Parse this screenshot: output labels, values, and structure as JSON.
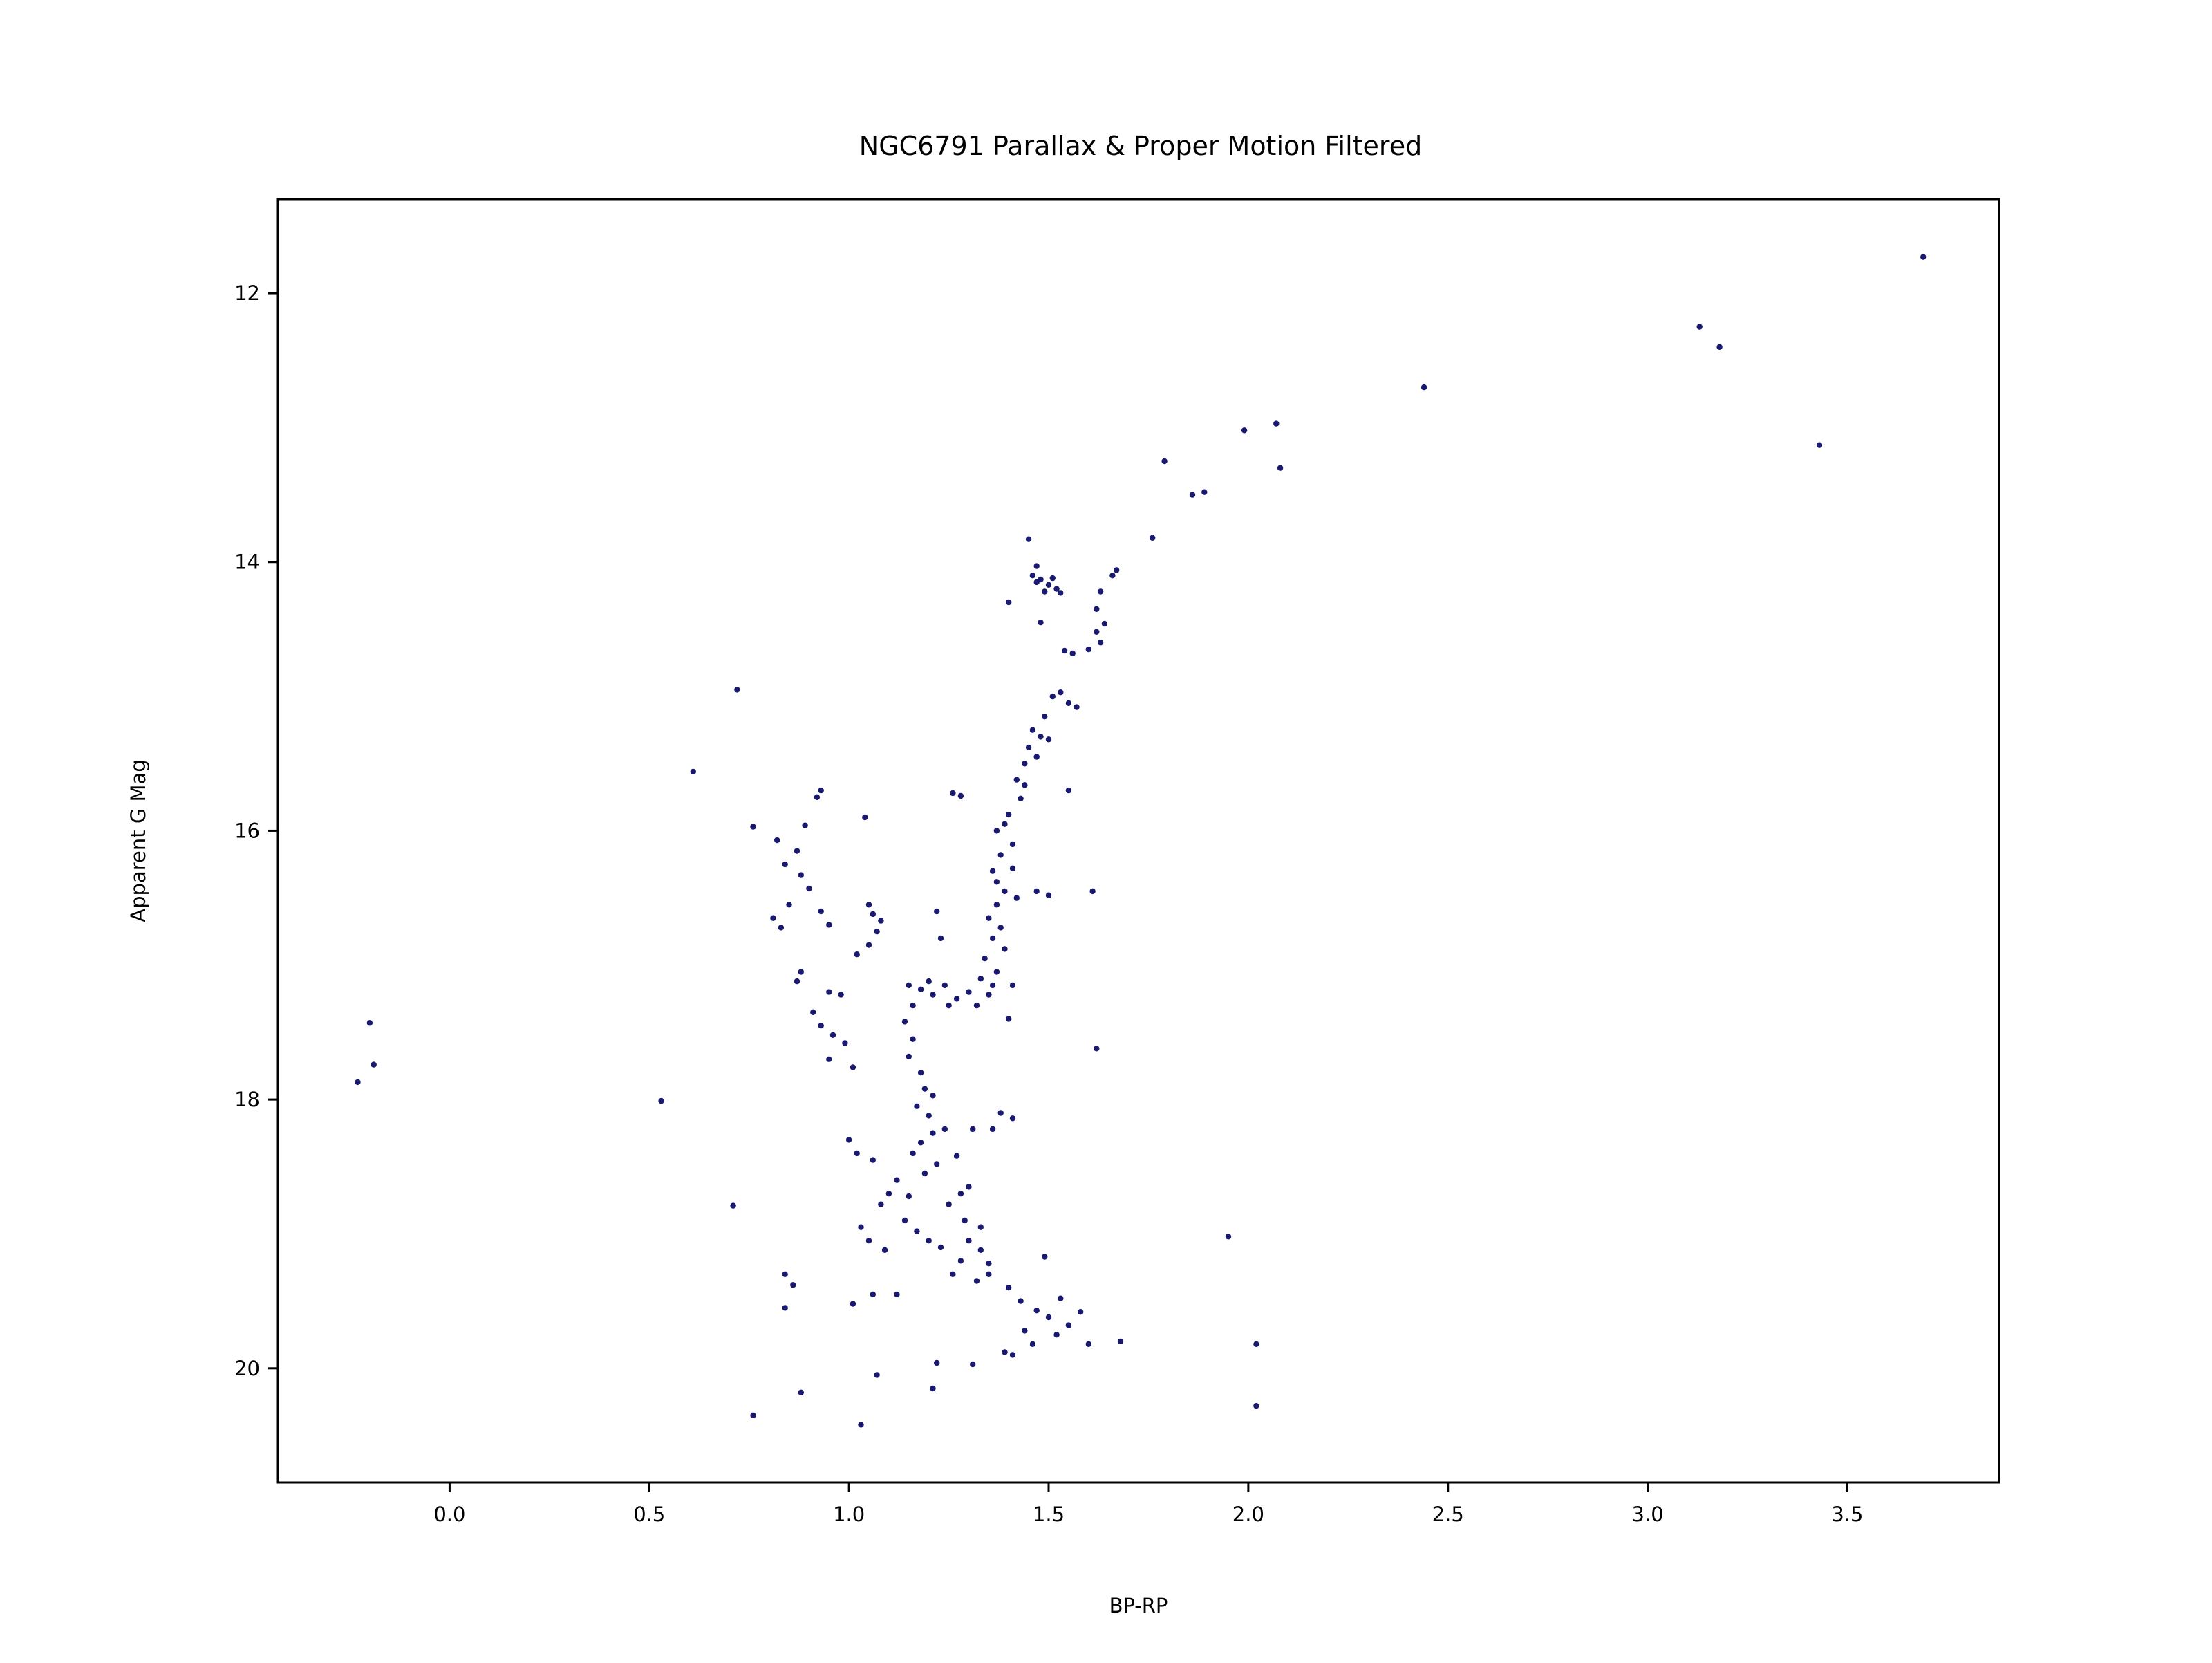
{
  "chart_data": {
    "type": "scatter",
    "title": "NGC6791 Parallax & Proper Motion Filtered",
    "xlabel": "BP-RP",
    "ylabel": "Apparent G Mag",
    "xlim": [
      -0.43,
      3.88
    ],
    "ylim": [
      20.85,
      11.3
    ],
    "y_inverted": true,
    "grid": false,
    "marker_color": "#191970",
    "x_ticks": [
      0.0,
      0.5,
      1.0,
      1.5,
      2.0,
      2.5,
      3.0,
      3.5
    ],
    "x_tick_labels": [
      "0.0",
      "0.5",
      "1.0",
      "1.5",
      "2.0",
      "2.5",
      "3.0",
      "3.5"
    ],
    "y_ticks": [
      12,
      14,
      16,
      18,
      20
    ],
    "y_tick_labels": [
      "12",
      "14",
      "16",
      "18",
      "20"
    ],
    "points": [
      [
        3.69,
        11.73
      ],
      [
        3.13,
        12.25
      ],
      [
        3.18,
        12.4
      ],
      [
        3.43,
        13.13
      ],
      [
        2.44,
        12.7
      ],
      [
        2.07,
        12.97
      ],
      [
        1.99,
        13.02
      ],
      [
        2.08,
        13.3
      ],
      [
        1.79,
        13.25
      ],
      [
        1.86,
        13.5
      ],
      [
        1.89,
        13.48
      ],
      [
        1.76,
        13.82
      ],
      [
        1.67,
        14.06
      ],
      [
        1.66,
        14.1
      ],
      [
        1.45,
        13.83
      ],
      [
        1.47,
        14.03
      ],
      [
        1.46,
        14.1
      ],
      [
        1.48,
        14.13
      ],
      [
        1.5,
        14.17
      ],
      [
        1.52,
        14.2
      ],
      [
        1.49,
        14.22
      ],
      [
        1.53,
        14.23
      ],
      [
        1.47,
        14.15
      ],
      [
        1.51,
        14.12
      ],
      [
        1.63,
        14.22
      ],
      [
        1.4,
        14.3
      ],
      [
        1.62,
        14.35
      ],
      [
        1.64,
        14.46
      ],
      [
        1.62,
        14.52
      ],
      [
        1.63,
        14.6
      ],
      [
        1.48,
        14.45
      ],
      [
        1.54,
        14.66
      ],
      [
        1.56,
        14.68
      ],
      [
        1.6,
        14.65
      ],
      [
        1.53,
        14.97
      ],
      [
        1.51,
        15.0
      ],
      [
        1.55,
        15.05
      ],
      [
        1.57,
        15.08
      ],
      [
        1.49,
        15.15
      ],
      [
        1.46,
        15.25
      ],
      [
        1.48,
        15.3
      ],
      [
        1.5,
        15.32
      ],
      [
        1.45,
        15.38
      ],
      [
        1.47,
        15.45
      ],
      [
        1.44,
        15.5
      ],
      [
        1.42,
        15.62
      ],
      [
        1.44,
        15.66
      ],
      [
        1.43,
        15.76
      ],
      [
        1.55,
        15.7
      ],
      [
        1.4,
        15.88
      ],
      [
        1.39,
        15.95
      ],
      [
        1.37,
        16.0
      ],
      [
        1.41,
        16.1
      ],
      [
        1.38,
        16.18
      ],
      [
        1.36,
        16.3
      ],
      [
        1.41,
        16.28
      ],
      [
        1.37,
        16.38
      ],
      [
        1.39,
        16.45
      ],
      [
        1.42,
        16.5
      ],
      [
        1.37,
        16.55
      ],
      [
        1.35,
        16.65
      ],
      [
        1.38,
        16.72
      ],
      [
        1.36,
        16.8
      ],
      [
        1.39,
        16.88
      ],
      [
        1.34,
        16.95
      ],
      [
        1.37,
        17.05
      ],
      [
        1.33,
        17.1
      ],
      [
        1.36,
        17.15
      ],
      [
        1.35,
        17.22
      ],
      [
        1.32,
        17.3
      ],
      [
        1.41,
        17.15
      ],
      [
        1.4,
        17.4
      ],
      [
        1.47,
        16.45
      ],
      [
        1.5,
        16.48
      ],
      [
        1.61,
        16.45
      ],
      [
        1.62,
        17.62
      ],
      [
        1.27,
        17.25
      ],
      [
        1.3,
        17.2
      ],
      [
        1.25,
        17.3
      ],
      [
        1.24,
        17.15
      ],
      [
        1.23,
        16.8
      ],
      [
        1.22,
        16.6
      ],
      [
        1.26,
        15.72
      ],
      [
        1.28,
        15.74
      ],
      [
        0.72,
        14.95
      ],
      [
        0.61,
        15.56
      ],
      [
        0.93,
        15.7
      ],
      [
        0.92,
        15.75
      ],
      [
        1.04,
        15.9
      ],
      [
        0.89,
        15.96
      ],
      [
        0.76,
        15.97
      ],
      [
        0.82,
        16.07
      ],
      [
        0.87,
        16.15
      ],
      [
        0.84,
        16.25
      ],
      [
        0.88,
        16.33
      ],
      [
        0.9,
        16.43
      ],
      [
        0.85,
        16.55
      ],
      [
        0.81,
        16.65
      ],
      [
        0.83,
        16.72
      ],
      [
        0.93,
        16.6
      ],
      [
        0.95,
        16.7
      ],
      [
        0.88,
        17.05
      ],
      [
        0.87,
        17.12
      ],
      [
        0.95,
        17.2
      ],
      [
        0.98,
        17.22
      ],
      [
        1.05,
        16.55
      ],
      [
        1.06,
        16.62
      ],
      [
        1.08,
        16.67
      ],
      [
        1.07,
        16.75
      ],
      [
        1.05,
        16.85
      ],
      [
        1.02,
        16.92
      ],
      [
        0.91,
        17.35
      ],
      [
        0.93,
        17.45
      ],
      [
        0.96,
        17.52
      ],
      [
        0.99,
        17.58
      ],
      [
        0.95,
        17.7
      ],
      [
        1.01,
        17.76
      ],
      [
        -0.2,
        17.43
      ],
      [
        -0.19,
        17.74
      ],
      [
        -0.23,
        17.87
      ],
      [
        0.53,
        18.01
      ],
      [
        1.0,
        18.3
      ],
      [
        1.02,
        18.4
      ],
      [
        1.31,
        18.22
      ],
      [
        1.38,
        18.1
      ],
      [
        1.41,
        18.14
      ],
      [
        1.36,
        18.22
      ],
      [
        0.71,
        18.79
      ],
      [
        1.03,
        18.95
      ],
      [
        1.05,
        19.05
      ],
      [
        1.09,
        19.12
      ],
      [
        1.95,
        19.02
      ],
      [
        0.84,
        19.3
      ],
      [
        0.86,
        19.38
      ],
      [
        0.84,
        19.55
      ],
      [
        1.01,
        19.52
      ],
      [
        1.06,
        19.45
      ],
      [
        1.12,
        19.45
      ],
      [
        1.35,
        19.3
      ],
      [
        1.4,
        19.4
      ],
      [
        1.43,
        19.5
      ],
      [
        1.47,
        19.57
      ],
      [
        1.5,
        19.62
      ],
      [
        1.52,
        19.75
      ],
      [
        1.55,
        19.68
      ],
      [
        1.58,
        19.58
      ],
      [
        1.53,
        19.48
      ],
      [
        1.6,
        19.82
      ],
      [
        1.46,
        19.82
      ],
      [
        1.44,
        19.72
      ],
      [
        1.68,
        19.8
      ],
      [
        1.49,
        19.17
      ],
      [
        2.02,
        19.82
      ],
      [
        2.02,
        20.28
      ],
      [
        1.39,
        19.88
      ],
      [
        1.41,
        19.9
      ],
      [
        1.31,
        19.97
      ],
      [
        1.22,
        19.96
      ],
      [
        1.21,
        20.15
      ],
      [
        1.07,
        20.05
      ],
      [
        0.88,
        20.18
      ],
      [
        0.76,
        20.35
      ],
      [
        1.03,
        20.42
      ],
      [
        1.3,
        19.05
      ],
      [
        1.33,
        19.12
      ],
      [
        1.28,
        19.2
      ],
      [
        1.35,
        19.22
      ],
      [
        1.32,
        19.35
      ],
      [
        1.26,
        19.3
      ],
      [
        1.23,
        19.1
      ],
      [
        1.2,
        19.05
      ],
      [
        1.17,
        18.98
      ],
      [
        1.14,
        18.9
      ],
      [
        1.25,
        18.78
      ],
      [
        1.28,
        18.7
      ],
      [
        1.3,
        18.65
      ],
      [
        1.19,
        18.55
      ],
      [
        1.22,
        18.48
      ],
      [
        1.16,
        18.4
      ],
      [
        1.18,
        18.32
      ],
      [
        1.21,
        18.25
      ],
      [
        1.24,
        18.22
      ],
      [
        1.27,
        18.42
      ],
      [
        1.29,
        18.9
      ],
      [
        1.33,
        18.95
      ],
      [
        1.12,
        18.6
      ],
      [
        1.1,
        18.7
      ],
      [
        1.08,
        18.78
      ],
      [
        1.15,
        18.72
      ],
      [
        1.06,
        18.45
      ],
      [
        1.15,
        17.15
      ],
      [
        1.18,
        17.18
      ],
      [
        1.2,
        17.12
      ],
      [
        1.21,
        17.22
      ],
      [
        1.16,
        17.3
      ],
      [
        1.14,
        17.42
      ],
      [
        1.16,
        17.55
      ],
      [
        1.15,
        17.68
      ],
      [
        1.18,
        17.8
      ],
      [
        1.19,
        17.92
      ],
      [
        1.21,
        17.97
      ],
      [
        1.17,
        18.05
      ],
      [
        1.2,
        18.12
      ]
    ]
  }
}
